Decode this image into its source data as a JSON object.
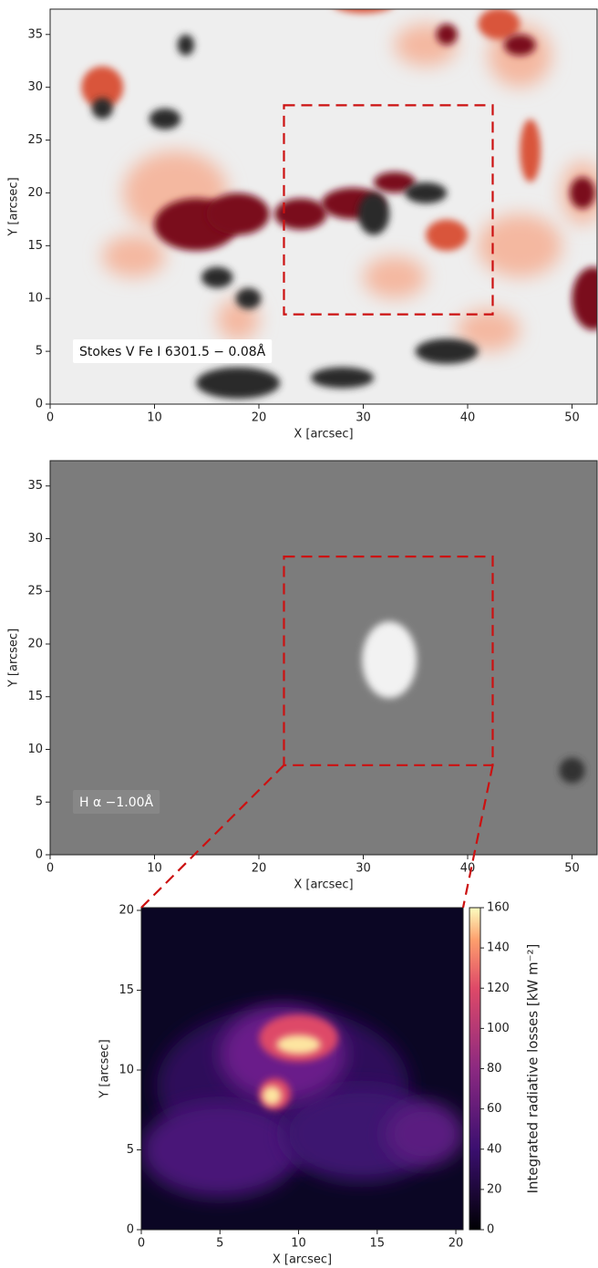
{
  "chart_data": [
    {
      "type": "image",
      "xlabel": "X [arcsec]",
      "ylabel": "Y [arcsec]",
      "xlim": [
        0,
        52.4
      ],
      "ylim": [
        0,
        37.4
      ],
      "xticks": [
        0,
        10,
        20,
        30,
        40,
        50
      ],
      "yticks": [
        0,
        5,
        10,
        15,
        20,
        25,
        30,
        35
      ],
      "annotation": "Stokes V  Fe I  6301.5 − 0.08Å",
      "region": {
        "x": [
          22.4,
          42.4
        ],
        "y": [
          8.5,
          28.3
        ]
      },
      "region_color": "#cc1111",
      "background": "#eeeeee"
    },
    {
      "type": "image",
      "xlabel": "X [arcsec]",
      "ylabel": "Y [arcsec]",
      "xlim": [
        0,
        52.4
      ],
      "ylim": [
        0,
        37.4
      ],
      "xticks": [
        0,
        10,
        20,
        30,
        40,
        50
      ],
      "yticks": [
        0,
        5,
        10,
        15,
        20,
        25,
        30,
        35
      ],
      "annotation": "H α −1.00Å",
      "region": {
        "x": [
          22.4,
          42.4
        ],
        "y": [
          8.5,
          28.3
        ]
      },
      "region_color": "#cc1111",
      "background": "#7c7c7c"
    },
    {
      "type": "image",
      "xlabel": "X [arcsec]",
      "ylabel": "Y [arcsec]",
      "xlim": [
        0,
        20.46
      ],
      "ylim": [
        0,
        20.17
      ],
      "xticks": [
        0,
        5,
        10,
        15,
        20
      ],
      "yticks": [
        0,
        5,
        10,
        15,
        20
      ],
      "background": "#0b0624",
      "colorbar": {
        "label": "Integrated radiative losses [kW m⁻²]",
        "lim": [
          0,
          160
        ],
        "ticks": [
          0,
          20,
          40,
          60,
          80,
          100,
          120,
          140,
          160
        ],
        "colormap": "magma"
      }
    }
  ]
}
